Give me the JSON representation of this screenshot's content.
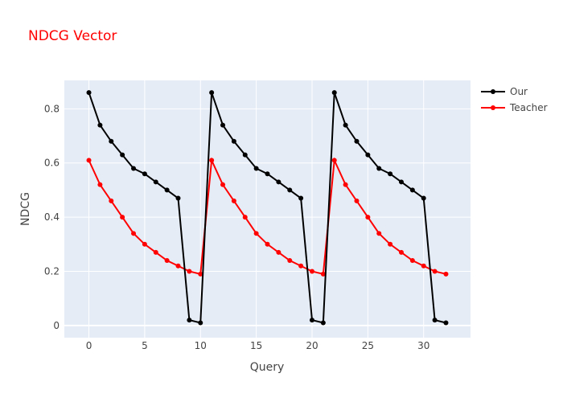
{
  "chart_data": {
    "type": "line",
    "title": "NDCG Vector",
    "title_color": "#ff0000",
    "xlabel": "Query",
    "ylabel": "NDCG",
    "xlim": [
      -2.2,
      34.2
    ],
    "ylim": [
      -0.045,
      0.905
    ],
    "xticks": [
      0,
      5,
      10,
      15,
      20,
      25,
      30
    ],
    "yticks": [
      0,
      0.2,
      0.4,
      0.6,
      0.8
    ],
    "ytick_labels": [
      "0",
      "0.2",
      "0.4",
      "0.6",
      "0.8"
    ],
    "grid": true,
    "plot_background": "#e5ecf6",
    "legend_position": "top-right",
    "x": [
      0,
      1,
      2,
      3,
      4,
      5,
      6,
      7,
      8,
      9,
      10,
      11,
      12,
      13,
      14,
      15,
      16,
      17,
      18,
      19,
      20,
      21,
      22,
      23,
      24,
      25,
      26,
      27,
      28,
      29,
      30,
      31,
      32
    ],
    "series": [
      {
        "name": "Our",
        "color": "#000000",
        "values": [
          0.86,
          0.74,
          0.68,
          0.63,
          0.58,
          0.56,
          0.53,
          0.5,
          0.47,
          0.02,
          0.01,
          0.86,
          0.74,
          0.68,
          0.63,
          0.58,
          0.56,
          0.53,
          0.5,
          0.47,
          0.02,
          0.01,
          0.86,
          0.74,
          0.68,
          0.63,
          0.58,
          0.56,
          0.53,
          0.5,
          0.47,
          0.02,
          0.01
        ]
      },
      {
        "name": "Teacher",
        "color": "#ff0000",
        "values": [
          0.61,
          0.52,
          0.46,
          0.4,
          0.34,
          0.3,
          0.27,
          0.24,
          0.22,
          0.2,
          0.19,
          0.61,
          0.52,
          0.46,
          0.4,
          0.34,
          0.3,
          0.27,
          0.24,
          0.22,
          0.2,
          0.19,
          0.61,
          0.52,
          0.46,
          0.4,
          0.34,
          0.3,
          0.27,
          0.24,
          0.22,
          0.2,
          0.19
        ]
      }
    ]
  }
}
